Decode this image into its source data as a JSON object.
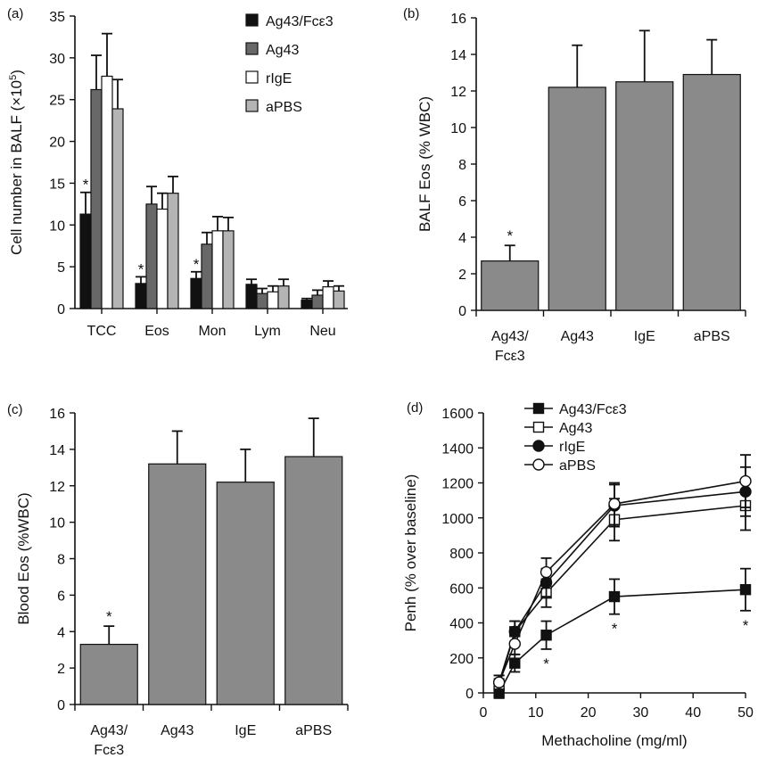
{
  "chart_data": [
    {
      "panel": "(a)",
      "type": "bar",
      "ylabel_main": "Cell number in BALF (×10",
      "ylabel_sup": "5",
      "ylabel_end": ")",
      "ylim": [
        0,
        35
      ],
      "yticks": [
        0,
        5,
        10,
        15,
        20,
        25,
        30,
        35
      ],
      "categories": [
        "TCC",
        "Eos",
        "Mon",
        "Lym",
        "Neu"
      ],
      "legend_position": "top-right",
      "series": [
        {
          "name": "Ag43/Fcε3",
          "color": "#111111",
          "values": [
            11.3,
            3.0,
            3.6,
            2.9,
            1.0
          ],
          "errors": [
            2.6,
            0.8,
            0.8,
            0.6,
            0.2
          ],
          "significant": [
            true,
            true,
            true,
            false,
            false
          ]
        },
        {
          "name": "Ag43",
          "color": "#686868",
          "values": [
            26.2,
            12.5,
            7.7,
            1.8,
            1.6
          ],
          "errors": [
            4.1,
            2.1,
            1.4,
            0.6,
            0.6
          ],
          "significant": [
            false,
            false,
            false,
            false,
            false
          ]
        },
        {
          "name": "rIgE",
          "color": "#ffffff",
          "values": [
            27.8,
            11.9,
            9.3,
            2.0,
            2.6
          ],
          "errors": [
            5.1,
            1.9,
            1.7,
            0.7,
            0.7
          ],
          "significant": [
            false,
            false,
            false,
            false,
            false
          ]
        },
        {
          "name": "aPBS",
          "color": "#b4b4b4",
          "values": [
            23.9,
            13.8,
            9.3,
            2.7,
            2.1
          ],
          "errors": [
            3.5,
            2.0,
            1.6,
            0.8,
            0.6
          ],
          "significant": [
            false,
            false,
            false,
            false,
            false
          ]
        }
      ],
      "significance_marker": "*"
    },
    {
      "panel": "(b)",
      "type": "bar",
      "ylabel": "BALF Eos (% WBC)",
      "ylim": [
        0,
        16
      ],
      "yticks": [
        0,
        2,
        4,
        6,
        8,
        10,
        12,
        14,
        16
      ],
      "categories": [
        [
          "Ag43/",
          "Fcε3"
        ],
        [
          "Ag43"
        ],
        [
          "IgE"
        ],
        [
          "aPBS"
        ]
      ],
      "bar_color": "#8a8a8a",
      "values": [
        2.7,
        12.2,
        12.5,
        12.9
      ],
      "errors": [
        0.85,
        2.3,
        2.8,
        1.9
      ],
      "significant": [
        true,
        false,
        false,
        false
      ],
      "significance_marker": "*"
    },
    {
      "panel": "(c)",
      "type": "bar",
      "ylabel": "Blood Eos (%WBC)",
      "ylim": [
        0,
        16
      ],
      "yticks": [
        0,
        2,
        4,
        6,
        8,
        10,
        12,
        14,
        16
      ],
      "categories": [
        [
          "Ag43/",
          "Fcε3"
        ],
        [
          "Ag43"
        ],
        [
          "IgE"
        ],
        [
          "aPBS"
        ]
      ],
      "bar_color": "#8a8a8a",
      "values": [
        3.3,
        13.2,
        12.2,
        13.6
      ],
      "errors": [
        1.0,
        1.8,
        1.8,
        2.1
      ],
      "significant": [
        true,
        false,
        false,
        false
      ],
      "significance_marker": "*"
    },
    {
      "panel": "(d)",
      "type": "line",
      "xlabel": "Methacholine (mg/ml)",
      "ylabel": "Penh (% over baseline)",
      "xlim": [
        0,
        50
      ],
      "xticks": [
        0,
        10,
        20,
        30,
        40,
        50
      ],
      "ylim": [
        0,
        1600
      ],
      "yticks": [
        0,
        200,
        400,
        600,
        800,
        1000,
        1200,
        1400,
        1600
      ],
      "x": [
        3,
        6,
        12,
        25,
        50
      ],
      "legend_position": "top-left",
      "series": [
        {
          "name": "Ag43/Fcε3",
          "marker": "filled-square",
          "values": [
            0,
            170,
            330,
            550,
            590
          ],
          "errors": [
            30,
            50,
            80,
            100,
            120
          ],
          "significant_x": [
            12,
            25,
            50
          ]
        },
        {
          "name": "Ag43",
          "marker": "open-square",
          "values": [
            40,
            350,
            570,
            990,
            1070
          ],
          "errors": [
            40,
            60,
            80,
            120,
            140
          ]
        },
        {
          "name": "rIgE",
          "marker": "filled-circle",
          "values": [
            60,
            350,
            630,
            1070,
            1150
          ],
          "errors": [
            40,
            60,
            80,
            120,
            140
          ]
        },
        {
          "name": "aPBS",
          "marker": "open-circle",
          "values": [
            60,
            280,
            690,
            1080,
            1210
          ],
          "errors": [
            40,
            60,
            80,
            120,
            150
          ]
        }
      ],
      "significance_marker": "*"
    }
  ]
}
